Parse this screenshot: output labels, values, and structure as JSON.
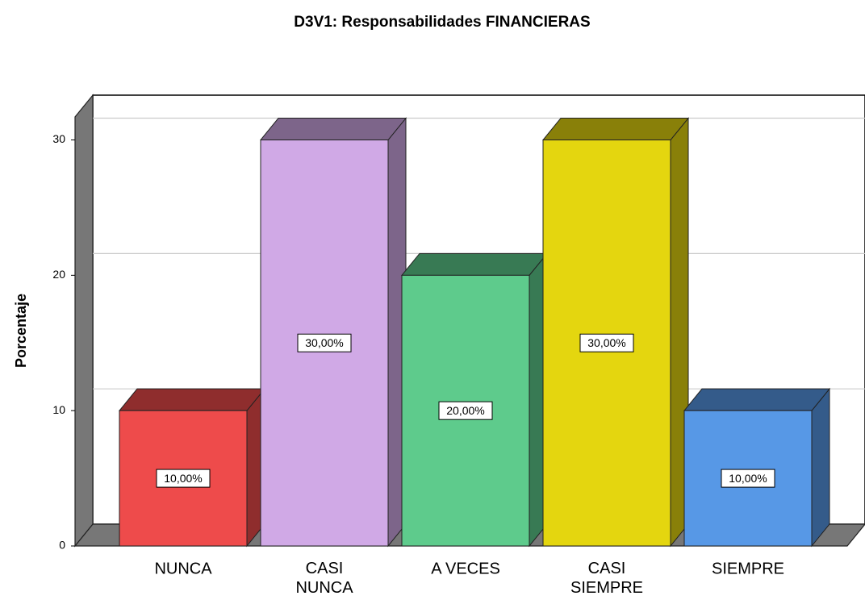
{
  "chart_data": {
    "type": "bar3d",
    "title": "D3V1: Responsabilidades FINANCIERAS",
    "ylabel": "Porcentaje",
    "categories": [
      "NUNCA",
      "CASI NUNCA",
      "A VECES",
      "CASI SIEMPRE",
      "SIEMPRE"
    ],
    "values": [
      10,
      30,
      20,
      30,
      10
    ],
    "value_labels": [
      "10,00%",
      "30,00%",
      "20,00%",
      "30,00%",
      "10,00%"
    ],
    "colors": [
      "#ee4b4b",
      "#d0a9e6",
      "#5ecb8c",
      "#e4d60f",
      "#5798e6"
    ],
    "ylim": [
      0,
      31.7
    ],
    "yticks": [
      0,
      10,
      20,
      30
    ],
    "grid": true
  }
}
